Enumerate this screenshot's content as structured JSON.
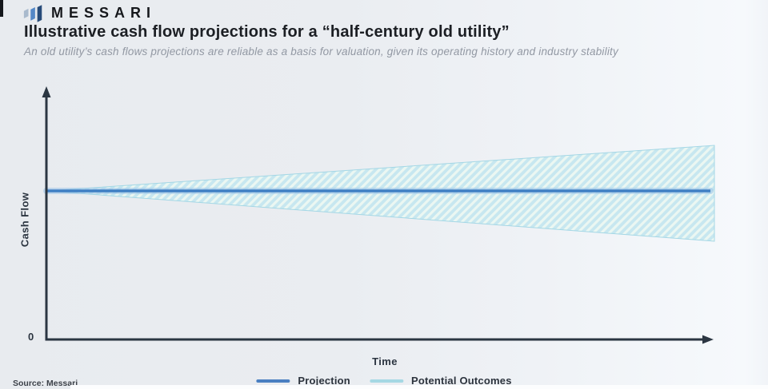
{
  "brand": {
    "name": "MESSARI"
  },
  "header": {
    "title": "Illustrative cash flow projections for a “half-century old utility”",
    "subtitle": "An old utility’s cash flows projections are reliable as a basis for valuation, given its operating history and industry stability"
  },
  "footer": {
    "source": "Source: Messari"
  },
  "colors": {
    "axis": "#2b3642",
    "projection": "#3f7fc4",
    "projection_glow": "#9cc4e8",
    "band_fill": "#c7e7f0",
    "band_stripe": "#ebf7f2",
    "band_border": "#a4d7e5",
    "legend_projection": "#4a7fc1",
    "legend_outcomes": "#a5d8e4",
    "title_text": "#1c1f24",
    "subtitle_text": "#9298a3"
  },
  "chart_data": {
    "type": "area",
    "title": "Illustrative cash flow projections for a “half-century old utility”",
    "xlabel": "Time",
    "ylabel": "Cash Flow",
    "origin_tick": "0",
    "x_ticks": [],
    "y_ticks": [
      "0"
    ],
    "grid": false,
    "legend_position": "bottom-center",
    "x": [
      0,
      1
    ],
    "series": [
      {
        "name": "Projection",
        "kind": "line",
        "y": [
          0.62,
          0.62
        ]
      },
      {
        "name": "Potential Outcomes",
        "kind": "band",
        "upper": [
          0.62,
          0.81
        ],
        "lower": [
          0.62,
          0.41
        ]
      }
    ]
  }
}
